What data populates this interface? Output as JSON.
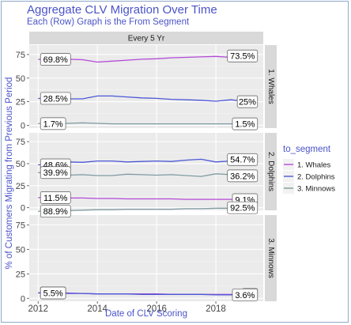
{
  "title": "Aggregate CLV Migration Over Time",
  "subtitle": "Each (Row) Graph is the From Segment",
  "chart_data": {
    "type": "line",
    "facet_column_strip": "Every 5 Yr",
    "xlabel": "Date of CLV Scoring",
    "ylabel": "% of Customers Migrating from Previous Period",
    "x_ticks": [
      2012,
      2014,
      2016,
      2018
    ],
    "xlim": [
      2011.7,
      2019.6
    ],
    "y_ticks": [
      0,
      25,
      50,
      75
    ],
    "ylim": [
      -3,
      85
    ],
    "legend_title": "to_segment",
    "legend_position": "right",
    "legend": [
      {
        "name": "1. Whales",
        "color": "#b44ad9"
      },
      {
        "name": "2. Dolphins",
        "color": "#4b57d6"
      },
      {
        "name": "3. Minnows",
        "color": "#7e9aa0"
      }
    ],
    "panels": [
      {
        "strip": "1. Whales",
        "series": [
          {
            "name": "1. Whales",
            "x": [
              2012.0,
              2012.5,
              2013.0,
              2013.5,
              2014.0,
              2014.5,
              2015.0,
              2015.5,
              2016.0,
              2016.5,
              2017.0,
              2017.5,
              2018.0,
              2018.5,
              2019.0,
              2019.3
            ],
            "values": [
              69.8,
              71.0,
              70.0,
              69.5,
              67.0,
              68.0,
              69.0,
              70.0,
              70.5,
              71.5,
              72.0,
              72.5,
              73.0,
              72.0,
              73.0,
              73.5
            ]
          },
          {
            "name": "2. Dolphins",
            "x": [
              2012.0,
              2012.5,
              2013.0,
              2013.5,
              2014.0,
              2014.5,
              2015.0,
              2015.5,
              2016.0,
              2016.5,
              2017.0,
              2017.5,
              2018.0,
              2018.5,
              2019.0,
              2019.3
            ],
            "values": [
              28.5,
              27.0,
              28.0,
              28.0,
              31.0,
              31.0,
              30.0,
              29.0,
              28.5,
              27.5,
              27.0,
              26.5,
              25.5,
              27.0,
              25.5,
              25.0
            ]
          },
          {
            "name": "3. Minnows",
            "x": [
              2012.0,
              2012.5,
              2013.0,
              2013.5,
              2014.0,
              2014.5,
              2015.0,
              2015.5,
              2016.0,
              2016.5,
              2017.0,
              2017.5,
              2018.0,
              2018.5,
              2019.0,
              2019.3
            ],
            "values": [
              1.7,
              2.0,
              2.0,
              2.5,
              2.0,
              1.5,
              1.5,
              1.5,
              1.5,
              1.5,
              1.5,
              1.5,
              1.5,
              1.5,
              1.5,
              1.5
            ]
          }
        ],
        "labels": [
          {
            "text": "69.8%",
            "x": 2012.0,
            "y": 69.8
          },
          {
            "text": "73.5%",
            "x": 2019.3,
            "y": 73.5
          },
          {
            "text": "28.5%",
            "x": 2012.0,
            "y": 28.5
          },
          {
            "text": "25%",
            "x": 2019.3,
            "y": 25.0
          },
          {
            "text": "1.7%",
            "x": 2012.0,
            "y": 1.7
          },
          {
            "text": "1.5%",
            "x": 2019.3,
            "y": 1.5
          }
        ]
      },
      {
        "strip": "2. Dolphins",
        "series": [
          {
            "name": "1. Whales",
            "x": [
              2012.0,
              2012.5,
              2013.0,
              2013.5,
              2014.0,
              2014.5,
              2015.0,
              2015.5,
              2016.0,
              2016.5,
              2017.0,
              2017.5,
              2018.0,
              2018.5,
              2019.0,
              2019.3
            ],
            "values": [
              11.5,
              11.5,
              11.0,
              11.0,
              10.5,
              10.5,
              10.0,
              10.0,
              10.0,
              10.0,
              9.5,
              9.5,
              9.5,
              9.5,
              9.0,
              9.1
            ]
          },
          {
            "name": "2. Dolphins",
            "x": [
              2012.0,
              2012.5,
              2013.0,
              2013.5,
              2014.0,
              2014.5,
              2015.0,
              2015.5,
              2016.0,
              2016.5,
              2017.0,
              2017.5,
              2018.0,
              2018.5,
              2019.0,
              2019.3
            ],
            "values": [
              48.6,
              50.0,
              52.0,
              51.5,
              53.0,
              53.0,
              52.0,
              52.5,
              53.0,
              52.5,
              54.0,
              55.0,
              52.0,
              53.0,
              54.0,
              54.7
            ]
          },
          {
            "name": "3. Minnows",
            "x": [
              2012.0,
              2012.5,
              2013.0,
              2013.5,
              2014.0,
              2014.5,
              2015.0,
              2015.5,
              2016.0,
              2016.5,
              2017.0,
              2017.5,
              2018.0,
              2018.5,
              2019.0,
              2019.3
            ],
            "values": [
              39.9,
              38.5,
              37.0,
              37.5,
              36.5,
              36.5,
              38.0,
              37.5,
              37.0,
              37.5,
              36.5,
              35.5,
              38.5,
              37.5,
              37.0,
              36.2
            ]
          }
        ],
        "labels": [
          {
            "text": "48.6%",
            "x": 2012.0,
            "y": 48.6
          },
          {
            "text": "54.7%",
            "x": 2019.3,
            "y": 54.7
          },
          {
            "text": "39.9%",
            "x": 2012.0,
            "y": 39.9
          },
          {
            "text": "36.2%",
            "x": 2019.3,
            "y": 36.2
          },
          {
            "text": "11.5%",
            "x": 2012.0,
            "y": 11.5
          },
          {
            "text": "9.1%",
            "x": 2019.3,
            "y": 9.1
          }
        ]
      },
      {
        "strip": "3. Minnows",
        "series": [
          {
            "name": "1. Whales",
            "x": [
              2012.0,
              2012.5,
              2013.0,
              2013.5,
              2014.0,
              2014.5,
              2015.0,
              2015.5,
              2016.0,
              2016.5,
              2017.0,
              2017.5,
              2018.0,
              2018.5,
              2019.0,
              2019.3
            ],
            "values": [
              5.6,
              5.5,
              5.5,
              5.0,
              4.5,
              4.5,
              4.5,
              4.5,
              4.5,
              4.0,
              4.0,
              4.0,
              4.0,
              4.0,
              4.0,
              4.0
            ]
          },
          {
            "name": "2. Dolphins",
            "x": [
              2012.0,
              2012.5,
              2013.0,
              2013.5,
              2014.0,
              2014.5,
              2015.0,
              2015.5,
              2016.0,
              2016.5,
              2017.0,
              2017.5,
              2018.0,
              2018.5,
              2019.0,
              2019.3
            ],
            "values": [
              5.5,
              5.5,
              5.0,
              5.0,
              4.5,
              4.5,
              4.5,
              4.0,
              4.0,
              4.0,
              4.0,
              4.0,
              3.5,
              3.5,
              3.5,
              3.6
            ]
          },
          {
            "name": "3. Minnows",
            "x": [
              2012.0,
              2012.5,
              2013.0,
              2013.5,
              2014.0,
              2014.5,
              2015.0,
              2015.5,
              2016.0,
              2016.5,
              2017.0,
              2017.5,
              2018.0,
              2018.5,
              2019.0,
              2019.3
            ],
            "values": [
              88.9,
              89.0,
              89.5,
              90.0,
              90.5,
              90.5,
              91.0,
              91.0,
              91.0,
              91.0,
              91.5,
              91.5,
              92.0,
              92.0,
              92.5,
              92.5
            ]
          }
        ],
        "labels": [
          {
            "text": "88.9%",
            "x": 2012.0,
            "y": 88.9
          },
          {
            "text": "92.5%",
            "x": 2019.3,
            "y": 92.5
          },
          {
            "text": "5.6%",
            "x": 2012.0,
            "y": 5.6
          },
          {
            "text": "4%",
            "x": 2019.3,
            "y": 4.0
          },
          {
            "text": "5.5%",
            "x": 2012.0,
            "y": 5.5
          },
          {
            "text": "3.6%",
            "x": 2019.3,
            "y": 3.6
          }
        ]
      }
    ]
  }
}
